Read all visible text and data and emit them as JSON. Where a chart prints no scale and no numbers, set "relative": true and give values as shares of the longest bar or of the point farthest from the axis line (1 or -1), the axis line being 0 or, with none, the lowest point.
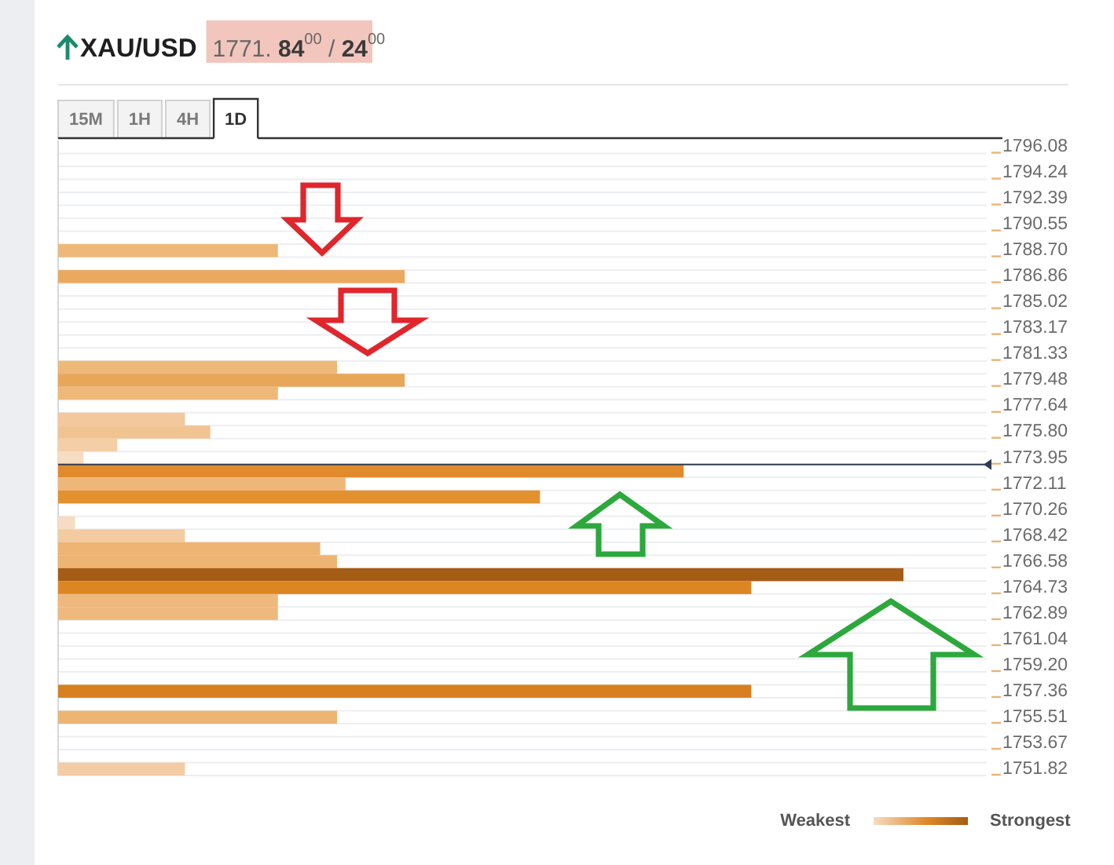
{
  "chart_data": {
    "type": "bar",
    "orientation": "horizontal",
    "relative": true,
    "title": "XAU/USD",
    "subtitle": "1771. 84$^{00}$ / 24$^{00}$",
    "categories": [
      "1796.08",
      null,
      "1794.24",
      null,
      "1792.39",
      null,
      "1790.55",
      null,
      "1788.70",
      null,
      "1786.86",
      null,
      "1785.02",
      null,
      "1783.17",
      null,
      "1781.33",
      null,
      "1779.48",
      null,
      "1777.64",
      null,
      "1775.80",
      null,
      "1773.95",
      null,
      "1772.11",
      null,
      "1770.26",
      null,
      "1768.42",
      null,
      "1766.58",
      null,
      "1764.73",
      null,
      "1762.89",
      null,
      "1761.04",
      null,
      "1759.20",
      null,
      "1757.36",
      null,
      "1755.51",
      null,
      "1753.67",
      null,
      "1751.82"
    ],
    "values": [
      null,
      null,
      null,
      null,
      null,
      null,
      null,
      null,
      0.26,
      null,
      0.41,
      null,
      null,
      null,
      null,
      null,
      null,
      0.33,
      0.41,
      0.26,
      null,
      0.15,
      0.18,
      0.07,
      0.03,
      0.74,
      0.34,
      0.57,
      null,
      0.02,
      0.15,
      0.31,
      0.33,
      1,
      0.82,
      0.26,
      0.26,
      null,
      null,
      null,
      null,
      null,
      0.82,
      null,
      0.33,
      null,
      null,
      null,
      0.15
    ],
    "colors": [
      null,
      null,
      null,
      null,
      null,
      null,
      null,
      null,
      "#eeb878",
      null,
      "#eaa95f",
      null,
      null,
      null,
      null,
      null,
      null,
      "#eeb878",
      "#e8a659",
      "#eeb878",
      null,
      "#f2c89c",
      "#f1c390",
      "#f4cea6",
      "#f6dcc0",
      "#e08a2b",
      "#efb67a",
      "#e3902f",
      null,
      "#f6dcc2",
      "#f3cba0",
      "#eeb473",
      "#eeb473",
      "#a55c14",
      "#dc8523",
      "#efb97d",
      "#efb97d",
      null,
      null,
      null,
      null,
      null,
      "#d8801f",
      null,
      "#edb473",
      null,
      null,
      null,
      "#f3cca4"
    ],
    "grid": "y",
    "ref_lines": [
      {
        "axis": "y",
        "value": "1773.95",
        "color": "#2f3d52"
      }
    ],
    "annotations": [
      "15M",
      "1H",
      "4H",
      "1D",
      "Weakest",
      "Strongest"
    ]
  }
}
